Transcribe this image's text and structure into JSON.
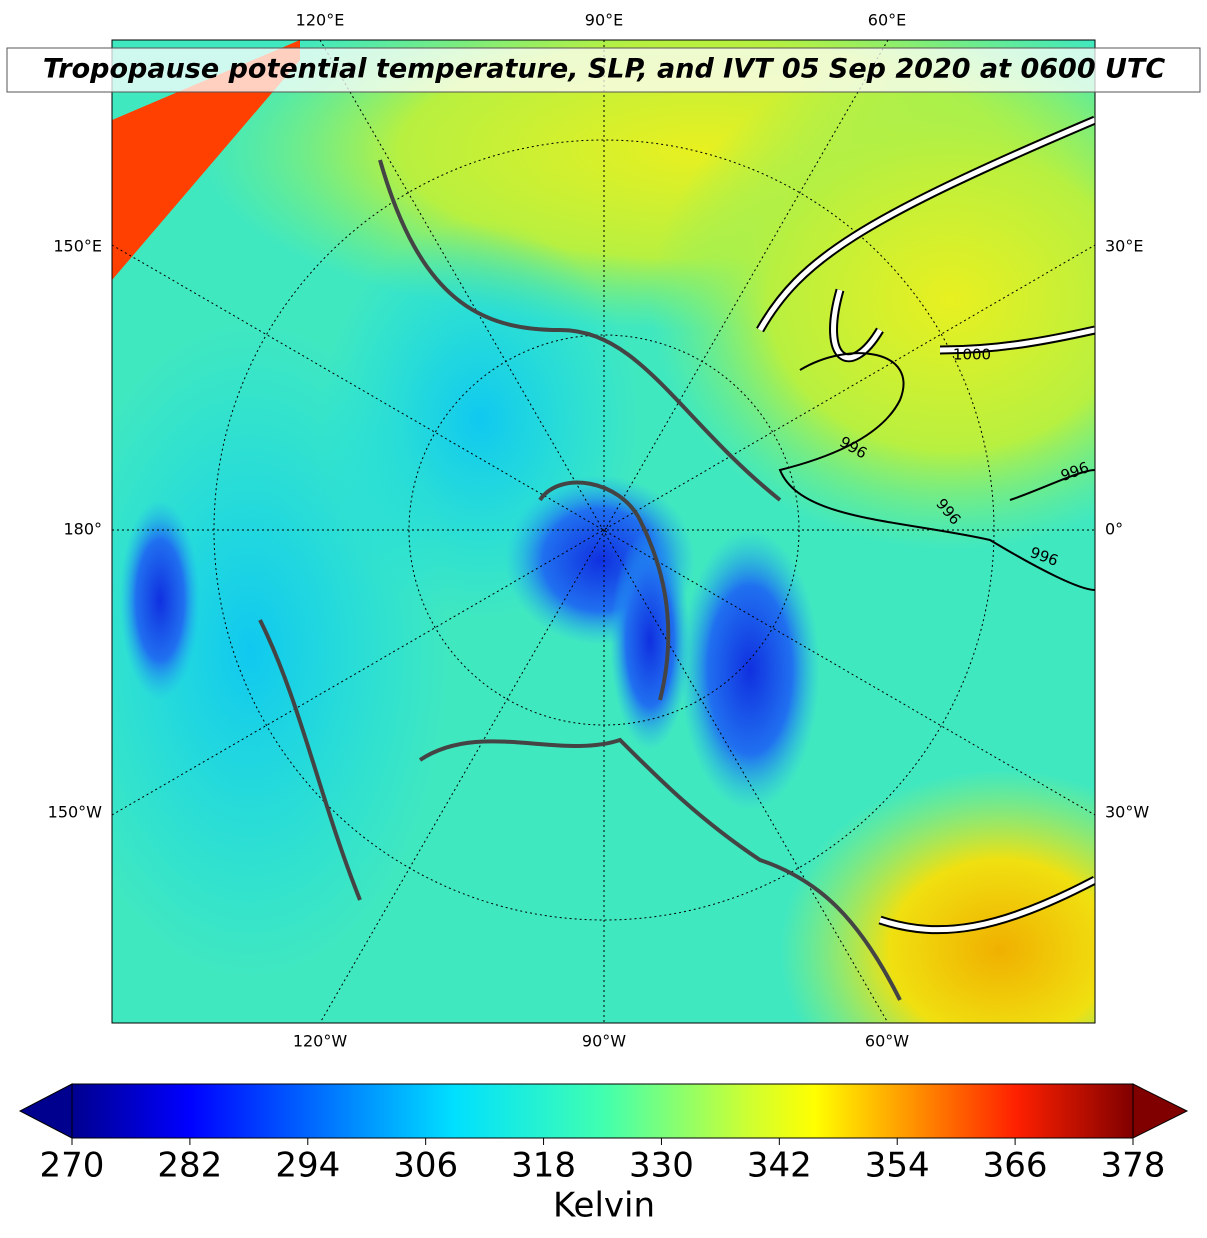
{
  "map": {
    "title": "Tropopause potential temperature, SLP, and IVT 05 Sep 2020 at 0600 UTC",
    "top_labels": [
      "120°E",
      "90°E",
      "60°E"
    ],
    "left_labels": [
      "150°E",
      "180°",
      "150°W"
    ],
    "right_labels": [
      "30°E",
      "0°",
      "30°W"
    ],
    "bottom_labels": [
      "120°W",
      "90°W",
      "60°W"
    ],
    "contour_labels": [
      "1000",
      "996",
      "996",
      "996",
      "996"
    ]
  },
  "colorbar": {
    "colormap": "jet",
    "label": "Kelvin",
    "lim": [
      270,
      378
    ],
    "ticks": [
      270,
      282,
      294,
      306,
      318,
      330,
      342,
      354,
      366,
      378
    ]
  }
}
